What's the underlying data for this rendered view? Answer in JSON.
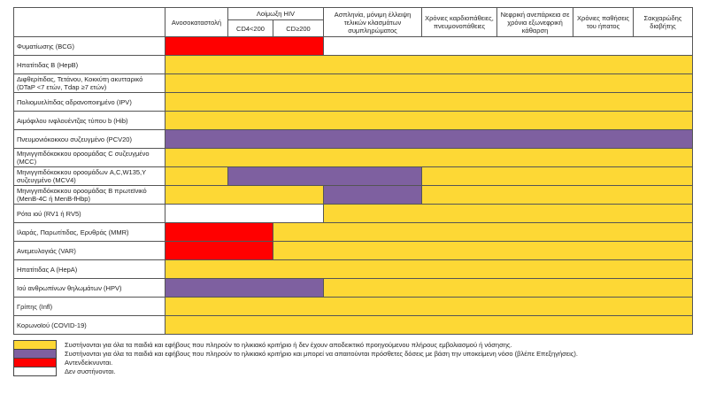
{
  "colors": {
    "Y": "#FDD835",
    "P": "#7E60A0",
    "R": "#FF0000",
    "W": "#FFFFFF"
  },
  "header": {
    "immuno": "Ανοσοκαταστολή",
    "hiv": "Λοίμωξη HIV",
    "cd4_low": "CD4<200",
    "cd4_high": "CD≥200",
    "asplenia": "Ασπληνία, μόνιμη έλλειψη τελικών κλασμάτων συμπληρώματος",
    "cardio": "Χρόνιες καρδιοπάθειες, πνευμονοπάθειες",
    "renal": "Νεφρική ανεπάρκεια σε χρόνια εξωνεφρική κάθαρση",
    "liver": "Χρόνιες παθήσεις του ήπατος",
    "diabetes": "Σακχαρώδης διαβήτης"
  },
  "rows": [
    {
      "label": "Φυματίωσης (BCG)",
      "cells": [
        "R",
        "R",
        "R",
        "W",
        "W",
        "W",
        "W",
        "W"
      ]
    },
    {
      "label": "Ηπατίτιδας Β (HepB)",
      "cells": [
        "Y",
        "Y",
        "Y",
        "Y",
        "Y",
        "Y",
        "Y",
        "Y"
      ]
    },
    {
      "label": "Διφθερίτιδας, Τετάνου, Κοκκύτη ακυτταρικό (DTaP <7 ετών, Tdap ≥7 ετών)",
      "cells": [
        "Y",
        "Y",
        "Y",
        "Y",
        "Y",
        "Y",
        "Y",
        "Y"
      ]
    },
    {
      "label": "Πολιομυελίτιδας αδρανοποιημένο (IPV)",
      "cells": [
        "Y",
        "Y",
        "Y",
        "Y",
        "Y",
        "Y",
        "Y",
        "Y"
      ]
    },
    {
      "label": "Αιμόφιλου ινφλουέντζας τύπου b (Hib)",
      "cells": [
        "Y",
        "Y",
        "Y",
        "Y",
        "Y",
        "Y",
        "Y",
        "Y"
      ]
    },
    {
      "label": "Πνευμονιόκοκκου συζευγμένο (PCV20)",
      "cells": [
        "P",
        "P",
        "P",
        "P",
        "P",
        "P",
        "P",
        "P"
      ]
    },
    {
      "label": "Μηνιγγιτιδόκοκκου οροομάδας C συζευγμένο (MCC)",
      "cells": [
        "Y",
        "Y",
        "Y",
        "Y",
        "Y",
        "Y",
        "Y",
        "Y"
      ]
    },
    {
      "label": "Μηνιγγιτιδόκοκκου οροομάδων A,C,W135,Y συζευγμένο (MCV4)",
      "cells": [
        "Y",
        "P",
        "P",
        "P",
        "Y",
        "Y",
        "Y",
        "Y"
      ]
    },
    {
      "label": "Μηνιγγιτιδόκοκκου οροομάδας Β πρωτεϊνικό (MenB-4C ή MenB-fHbp)",
      "cells": [
        "Y",
        "Y",
        "Y",
        "P",
        "Y",
        "Y",
        "Y",
        "Y"
      ]
    },
    {
      "label": "Ρότα ιού (RV1 ή RV5)",
      "cells": [
        "W",
        "W",
        "W",
        "Y",
        "Y",
        "Y",
        "Y",
        "Y"
      ]
    },
    {
      "label": "Ιλαράς, Παρωτίτιδας, Ερυθράς (MMR)",
      "cells": [
        "R",
        "R",
        "Y",
        "Y",
        "Y",
        "Y",
        "Y",
        "Y"
      ]
    },
    {
      "label": "Ανεμευλογιάς (VAR)",
      "cells": [
        "R",
        "R",
        "Y",
        "Y",
        "Y",
        "Y",
        "Y",
        "Y"
      ]
    },
    {
      "label": "Ηπατίτιδας Α (HepA)",
      "cells": [
        "Y",
        "Y",
        "Y",
        "Y",
        "Y",
        "Y",
        "Y",
        "Y"
      ]
    },
    {
      "label": "Ιού ανθρωπίνων θηλωμάτων (HPV)",
      "cells": [
        "P",
        "P",
        "P",
        "Y",
        "Y",
        "Y",
        "Y",
        "Y"
      ]
    },
    {
      "label": "Γρίπης (Infl)",
      "cells": [
        "Y",
        "Y",
        "Y",
        "Y",
        "Y",
        "Y",
        "Y",
        "Y"
      ]
    },
    {
      "label": "Κορωνοϊού (COVID-19)",
      "cells": [
        "Y",
        "Y",
        "Y",
        "Y",
        "Y",
        "Y",
        "Y",
        "Y"
      ]
    }
  ],
  "legend": [
    {
      "color": "Y",
      "text": "Συστήνονται για όλα τα παιδιά και εφήβους που  πληρούν το ηλικιακό κριτήριο ή δεν έχουν αποδεικτικό προηγούμενου πλήρους εμβολιασμού ή νόσησης."
    },
    {
      "color": "P",
      "text": "Συστήνονται για όλα τα παιδιά και εφήβους που πληρούν το ηλικιακό κριτήριο και μπορεί να απαιτούνται πρόσθετες δόσεις με βάση την υποκείμενη νόσο (βλέπε Επεξηγήσεις)."
    },
    {
      "color": "R",
      "text": "Αντενδείκνυνται."
    },
    {
      "color": "W",
      "text": "Δεν συστήνονται."
    }
  ]
}
